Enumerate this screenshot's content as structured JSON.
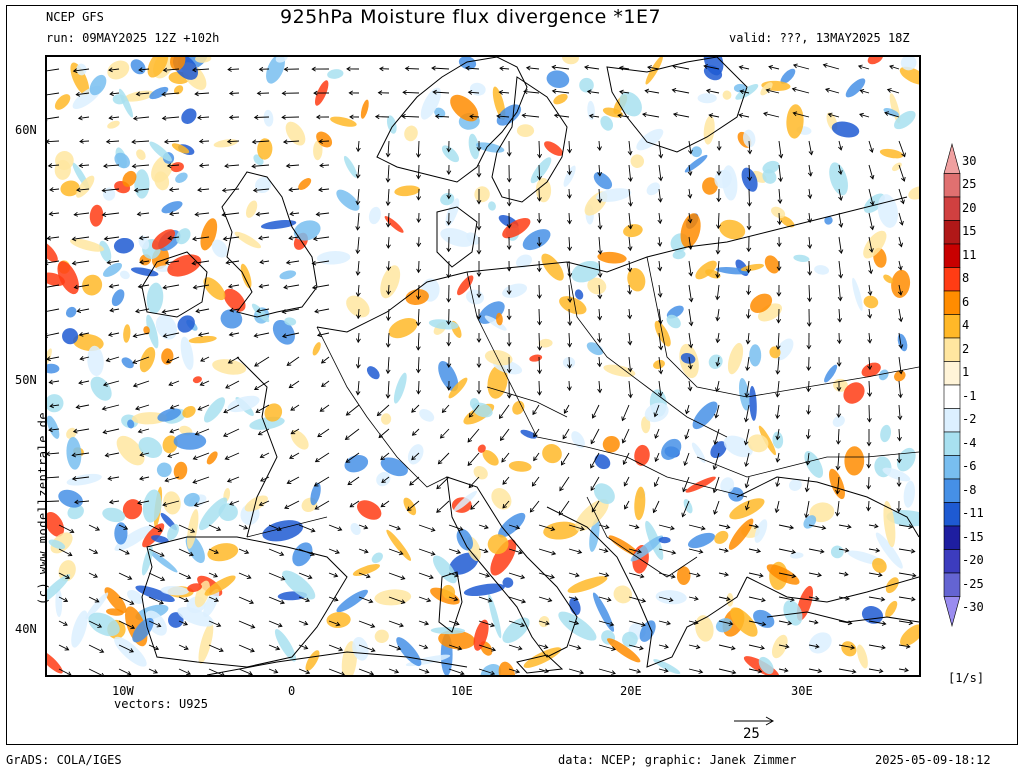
{
  "header": {
    "model": "NCEP GFS",
    "title": "925hPa Moisture flux divergence *1E7",
    "run": "run: 09MAY2025 12Z +102h",
    "valid": "valid: ???, 13MAY2025 18Z"
  },
  "axes": {
    "lat_labels": [
      "60N",
      "50N",
      "40N"
    ],
    "lon_labels": [
      "10W",
      "0",
      "10E",
      "20E",
      "30E"
    ]
  },
  "legend": {
    "levels": [
      "30",
      "25",
      "20",
      "15",
      "11",
      "8",
      "6",
      "4",
      "2",
      "1",
      "-1",
      "-2",
      "-4",
      "-6",
      "-8",
      "-11",
      "-15",
      "-20",
      "-25",
      "-30"
    ],
    "colors": [
      "#f0a0a0",
      "#e07070",
      "#d04040",
      "#b01818",
      "#c80000",
      "#ff3c14",
      "#ff8c00",
      "#ffb828",
      "#ffe6a0",
      "#fff4d8",
      "#ffffff",
      "#dcf0ff",
      "#a8e0f0",
      "#78bef0",
      "#4690e6",
      "#1e5ad2",
      "#1e1ea0",
      "#3c3cbe",
      "#6464d2",
      "#9a8cf0"
    ],
    "unit": "[1/s]"
  },
  "vectors": {
    "label": "vectors: U925",
    "ref_value": "25"
  },
  "watermark": "(c) www.modellzentrale.de",
  "footer": {
    "left": "GrADS: COLA/IGES",
    "credits": "data: NCEP; graphic: Janek Zimmer",
    "timestamp": "2025-05-09-18:12"
  }
}
